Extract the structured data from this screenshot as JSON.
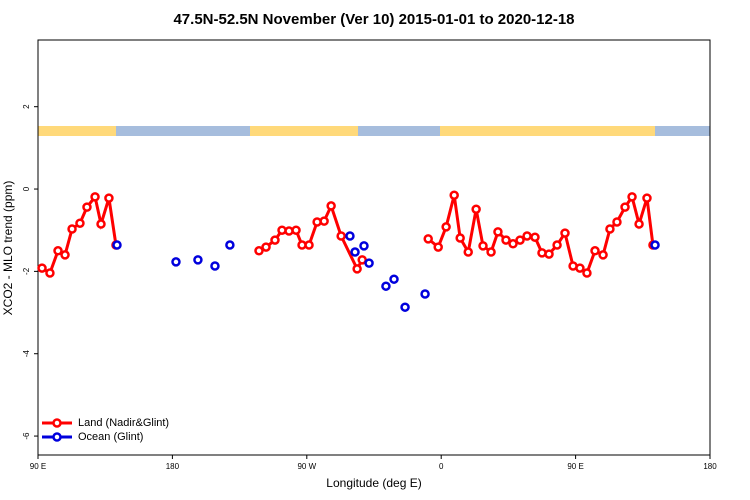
{
  "chart_data": {
    "type": "line",
    "title": "47.5N-52.5N November (Ver 10)   2015-01-01 to 2020-12-18",
    "xlabel": "Longitude (deg E)",
    "ylabel": "XCO2 - MLO trend (ppm)",
    "xlim": [
      90,
      540
    ],
    "ylim": [
      -6.46,
      3.62
    ],
    "xticks": [
      {
        "value": 90,
        "label": "90 E"
      },
      {
        "value": 180,
        "label": "180"
      },
      {
        "value": 270,
        "label": "90 W"
      },
      {
        "value": 360,
        "label": "0"
      },
      {
        "value": 450,
        "label": "90 E"
      },
      {
        "value": 540,
        "label": "180"
      }
    ],
    "yticks": [
      -6,
      -4,
      -2,
      0,
      2
    ],
    "legend": "bottom-left",
    "series": [
      {
        "name": "Land (Nadir&Glint)",
        "color": "#ff0000",
        "mode": "lines+markers",
        "x": [
          92.7,
          98.0,
          103.4,
          108.1,
          112.8,
          118.1,
          122.8,
          128.2,
          132.2,
          137.5,
          142.2,
          null,
          238.0,
          242.7,
          248.7,
          253.4,
          258.1,
          262.8,
          266.8,
          271.5,
          276.9,
          281.6,
          286.3,
          293.0,
          303.7,
          307.1,
          null,
          351.3,
          358.0,
          363.3,
          368.7,
          372.7,
          378.1,
          383.4,
          388.0,
          393.4,
          398.0,
          403.4,
          408.1,
          412.8,
          417.5,
          422.8,
          427.5,
          432.2,
          437.6,
          442.9,
          448.3,
          452.9,
          457.6,
          463.0,
          468.4,
          473.0,
          477.7,
          483.1,
          487.8,
          492.5,
          497.8,
          501.8
        ],
        "values": [
          -1.92,
          -2.04,
          -1.5,
          -1.6,
          -0.97,
          -0.83,
          -0.44,
          -0.19,
          -0.85,
          -0.22,
          -1.36,
          null,
          -1.5,
          -1.41,
          -1.24,
          -1.0,
          -1.02,
          -1.0,
          -1.36,
          -1.36,
          -0.8,
          -0.78,
          -0.41,
          -1.14,
          -1.94,
          -1.72,
          null,
          -1.21,
          -1.41,
          -0.92,
          -0.15,
          -1.19,
          -1.53,
          -0.49,
          -1.38,
          -1.53,
          -1.04,
          -1.24,
          -1.33,
          -1.24,
          -1.14,
          -1.17,
          -1.55,
          -1.58,
          -1.36,
          -1.07,
          -1.87,
          -1.92,
          -2.04,
          -1.5,
          -1.6,
          -0.97,
          -0.8,
          -0.44,
          -0.19,
          -0.85,
          -0.22,
          -1.36
        ]
      },
      {
        "name": "Ocean (Glint)",
        "color": "#0000dd",
        "mode": "markers",
        "x": [
          142.9,
          182.4,
          197.1,
          208.5,
          218.5,
          298.9,
          302.3,
          308.3,
          311.7,
          323.0,
          328.4,
          335.8,
          349.2,
          503.2
        ],
        "values": [
          -1.36,
          -1.77,
          -1.72,
          -1.87,
          -1.36,
          -1.14,
          -1.53,
          -1.38,
          -1.8,
          -2.36,
          -2.19,
          -2.87,
          -2.55,
          -1.36
        ]
      }
    ]
  }
}
